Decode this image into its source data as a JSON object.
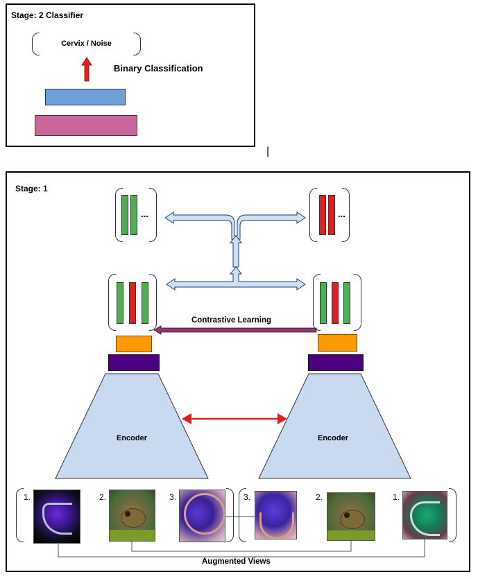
{
  "stage2": {
    "title": "Stage: 2 Classifier",
    "output_label": "Cervix / Noise",
    "task_label": "Binary Classification"
  },
  "stage1": {
    "title": "Stage: 1",
    "ellipsis_left": "...",
    "ellipsis_right": "...",
    "contrastive_label": "Contrastive Learning",
    "encoder_left": "Encoder",
    "encoder_right": "Encoder",
    "augmented_label": "Augmented Views",
    "left_view_numbers": [
      "1.",
      "2.",
      "3."
    ],
    "right_view_numbers": [
      "3.",
      "2.",
      "1."
    ]
  },
  "separator_mark": "|",
  "colors": {
    "green": "#4caf50",
    "red": "#e02020",
    "blue_bar": "#6fa0dc",
    "pink_bar": "#c9679c",
    "orange": "#ff9900",
    "purple": "#4b0082",
    "encoder": "#c9daf0",
    "arrow_fill": "#cfe0f3",
    "contrastive_arrow": "#8e3a6b"
  }
}
